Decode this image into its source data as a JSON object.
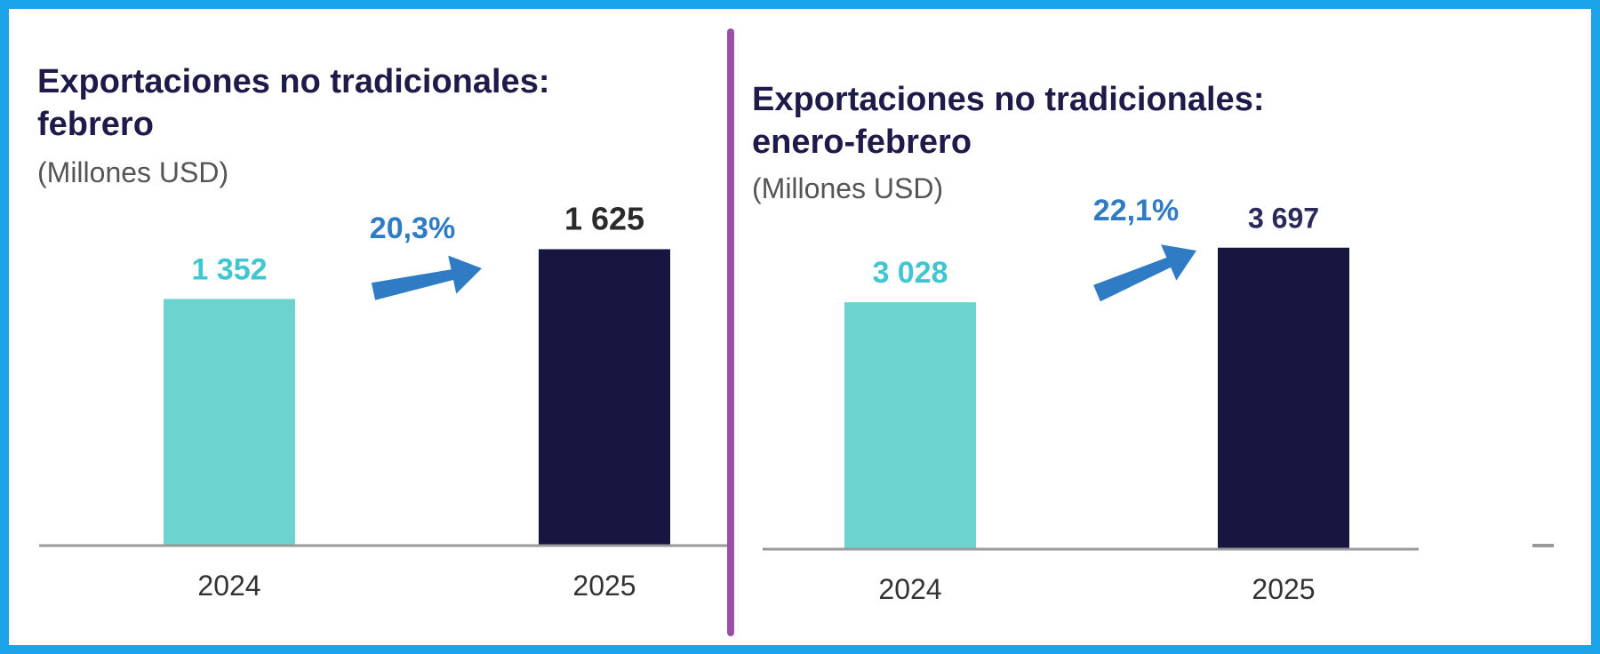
{
  "colors": {
    "border": "#1aa3e8",
    "divider": "#9b4fa6",
    "title": "#1e1b4b",
    "subtitle": "#555555",
    "bar_2024": "#6dd3ce",
    "bar_2025": "#161641",
    "label_2024": "#3fc6cf",
    "label_2025": "#2a2a2a",
    "label_2025_right": "#2a2a5a",
    "growth": "#2f7bc4",
    "axis": "#9a9a9a",
    "tick": "#333333"
  },
  "chart_data": [
    {
      "type": "bar",
      "title": "Exportaciones no tradicionales:",
      "title_line2": "febrero",
      "subtitle": "(Millones USD)",
      "categories": [
        "2024",
        "2025"
      ],
      "values": [
        1352,
        1625
      ],
      "value_labels": [
        "1 352",
        "1 625"
      ],
      "growth_label": "20,3%",
      "ylim": [
        0,
        1900
      ],
      "grid": false,
      "legend": false
    },
    {
      "type": "bar",
      "title": "Exportaciones no tradicionales:",
      "title_line2": "enero-febrero",
      "subtitle": "(Millones USD)",
      "categories": [
        "2024",
        "2025"
      ],
      "values": [
        3028,
        3697
      ],
      "value_labels": [
        "3 028",
        "3 697"
      ],
      "growth_label": "22,1%",
      "ylim": [
        0,
        4250
      ],
      "grid": false,
      "legend": false
    }
  ]
}
